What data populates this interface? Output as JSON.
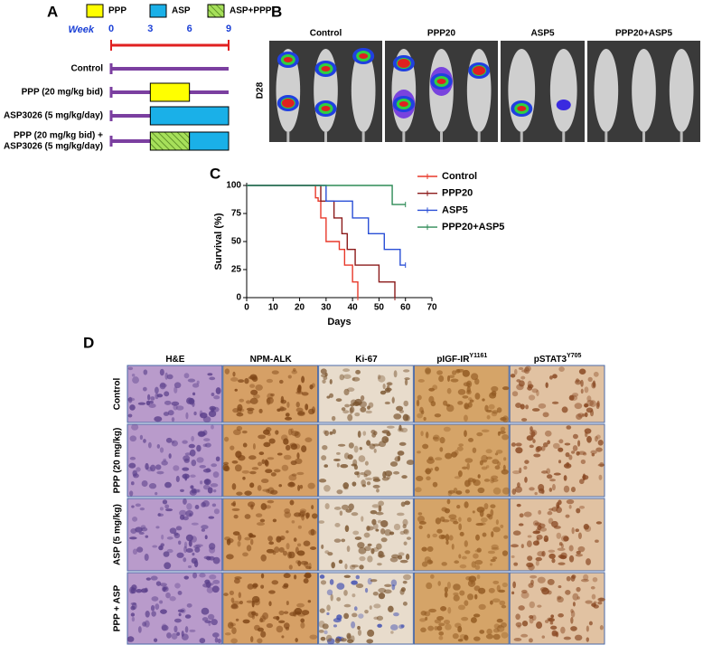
{
  "panel_a": {
    "label": "A",
    "legend": [
      {
        "text": "PPP",
        "color": "#ffff00",
        "pattern": "solid"
      },
      {
        "text": "ASP",
        "color": "#1ab0e8",
        "pattern": "solid"
      },
      {
        "text": "ASP+PPP",
        "color": "#a6e05a",
        "pattern": "hatch"
      }
    ],
    "axis_title": "Week",
    "xlim": [
      0,
      9
    ],
    "xticks": [
      0,
      3,
      6,
      9
    ],
    "rows": [
      {
        "label": [
          "Control"
        ],
        "treatments": []
      },
      {
        "label": [
          "PPP (20 mg/kg bid)"
        ],
        "treatments": [
          {
            "start": 3,
            "end": 6,
            "color": "#ffff00",
            "pattern": "solid"
          }
        ]
      },
      {
        "label": [
          "ASP3026 (5 mg/kg/day)"
        ],
        "treatments": [
          {
            "start": 3,
            "end": 9,
            "color": "#1ab0e8",
            "pattern": "solid"
          }
        ]
      },
      {
        "label": [
          "PPP (20 mg/kg bid) +",
          "ASP3026 (5 mg/kg/day)"
        ],
        "treatments": [
          {
            "start": 3,
            "end": 6,
            "color": "#a6e05a",
            "pattern": "hatch"
          },
          {
            "start": 6,
            "end": 9,
            "color": "#1ab0e8",
            "pattern": "solid"
          }
        ]
      }
    ]
  },
  "panel_b": {
    "label": "B",
    "row_label": "D28",
    "groups": [
      "Control",
      "PPP20",
      "ASP5",
      "PPP20+ASP5"
    ]
  },
  "chart_data": {
    "type": "step",
    "label": "C",
    "y_label": "Survival (%)",
    "x_label": "Days",
    "xlim": [
      0,
      70
    ],
    "xticks": [
      0,
      10,
      20,
      30,
      40,
      50,
      60,
      70
    ],
    "ylim": [
      0,
      100
    ],
    "yticks": [
      0,
      25,
      50,
      75,
      100
    ],
    "series": [
      {
        "name": "Control",
        "color": "#e8392a",
        "x": [
          0,
          26,
          27,
          28,
          30,
          35,
          37,
          40,
          42
        ],
        "values": [
          100,
          89,
          86,
          71,
          50,
          43,
          29,
          14,
          0
        ]
      },
      {
        "name": "PPP20",
        "color": "#8b1a1a",
        "x": [
          0,
          28,
          33,
          36,
          38,
          41,
          50,
          56
        ],
        "values": [
          100,
          86,
          71,
          57,
          43,
          29,
          14,
          0
        ]
      },
      {
        "name": "ASP5",
        "color": "#2a4fd6",
        "x": [
          0,
          30,
          40,
          46,
          52,
          58,
          60
        ],
        "values": [
          100,
          86,
          71,
          57,
          43,
          29,
          29
        ]
      },
      {
        "name": "PPP20+ASP5",
        "color": "#2e8b57",
        "x": [
          0,
          55,
          60
        ],
        "values": [
          100,
          83,
          83
        ]
      }
    ]
  },
  "panel_d": {
    "label": "D",
    "columns": [
      {
        "text": "H&E",
        "sup": ""
      },
      {
        "text": "NPM-ALK",
        "sup": ""
      },
      {
        "text": "Ki-67",
        "sup": ""
      },
      {
        "text": "pIGF-IR",
        "sup": "Y1161"
      },
      {
        "text": "pSTAT3",
        "sup": "Y705"
      }
    ],
    "rows": [
      "Control",
      "PPP (20 mg/kg)",
      "ASP (5 mg/kg)",
      "PPP + ASP"
    ]
  }
}
